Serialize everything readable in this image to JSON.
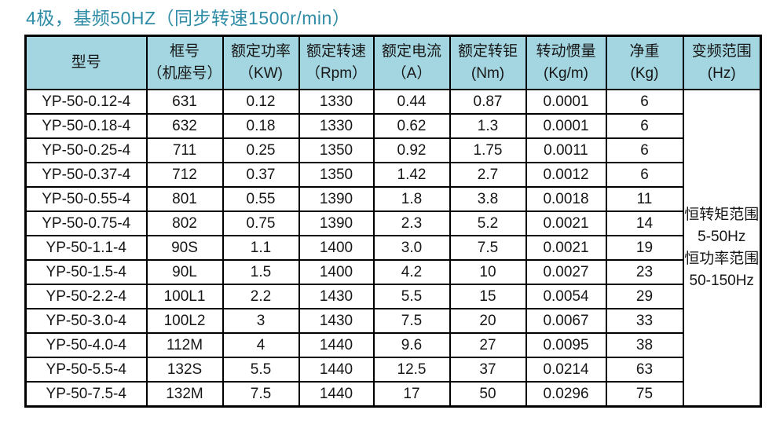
{
  "page": {
    "title": "4极，基频50HZ（同步转速1500r/min）"
  },
  "colors": {
    "title_text": "#2e8ca6",
    "header_bg": "#a3d6e0",
    "border": "#000000",
    "body_bg": "#ffffff",
    "cell_text": "#161616"
  },
  "table": {
    "headers": [
      {
        "line1": "型号",
        "line2": ""
      },
      {
        "line1": "框号",
        "line2": "（机座号）"
      },
      {
        "line1": "额定功率",
        "line2": "（KW)"
      },
      {
        "line1": "额定转速",
        "line2": "（Rpm）"
      },
      {
        "line1": "额定电流",
        "line2": "（A）"
      },
      {
        "line1": "额定转钜",
        "line2": "(Nm)"
      },
      {
        "line1": "转动惯量",
        "line2": "(Kg/m)"
      },
      {
        "line1": "净重",
        "line2": "(Kg)"
      },
      {
        "line1": "变频范围",
        "line2": "(Hz)"
      }
    ],
    "rows": [
      {
        "model": "YP-50-0.12-4",
        "frame": "631",
        "power": "0.12",
        "speed": "1330",
        "current": "0.44",
        "torque": "0.87",
        "inertia": "0.0001",
        "weight": "6"
      },
      {
        "model": "YP-50-0.18-4",
        "frame": "632",
        "power": "0.18",
        "speed": "1330",
        "current": "0.62",
        "torque": "1.3",
        "inertia": "0.0001",
        "weight": "6"
      },
      {
        "model": "YP-50-0.25-4",
        "frame": "711",
        "power": "0.25",
        "speed": "1350",
        "current": "0.92",
        "torque": "1.75",
        "inertia": "0.0011",
        "weight": "6"
      },
      {
        "model": "YP-50-0.37-4",
        "frame": "712",
        "power": "0.37",
        "speed": "1350",
        "current": "1.42",
        "torque": "2.7",
        "inertia": "0.0012",
        "weight": "6"
      },
      {
        "model": "YP-50-0.55-4",
        "frame": "801",
        "power": "0.55",
        "speed": "1390",
        "current": "1.8",
        "torque": "3.8",
        "inertia": "0.0018",
        "weight": "11"
      },
      {
        "model": "YP-50-0.75-4",
        "frame": "802",
        "power": "0.75",
        "speed": "1390",
        "current": "2.3",
        "torque": "5.2",
        "inertia": "0.0021",
        "weight": "14"
      },
      {
        "model": "YP-50-1.1-4",
        "frame": "90S",
        "power": "1.1",
        "speed": "1400",
        "current": "3.0",
        "torque": "7.5",
        "inertia": "0.0021",
        "weight": "19"
      },
      {
        "model": "YP-50-1.5-4",
        "frame": "90L",
        "power": "1.5",
        "speed": "1400",
        "current": "4.2",
        "torque": "10",
        "inertia": "0.0027",
        "weight": "23"
      },
      {
        "model": "YP-50-2.2-4",
        "frame": "100L1",
        "power": "2.2",
        "speed": "1430",
        "current": "5.5",
        "torque": "15",
        "inertia": "0.0054",
        "weight": "29"
      },
      {
        "model": "YP-50-3.0-4",
        "frame": "100L2",
        "power": "3",
        "speed": "1430",
        "current": "7.5",
        "torque": "20",
        "inertia": "0.0067",
        "weight": "33"
      },
      {
        "model": "YP-50-4.0-4",
        "frame": "112M",
        "power": "4",
        "speed": "1440",
        "current": "9.6",
        "torque": "27",
        "inertia": "0.0095",
        "weight": "38"
      },
      {
        "model": "YP-50-5.5-4",
        "frame": "132S",
        "power": "5.5",
        "speed": "1440",
        "current": "12.5",
        "torque": "37",
        "inertia": "0.0214",
        "weight": "63"
      },
      {
        "model": "YP-50-7.5-4",
        "frame": "132M",
        "power": "7.5",
        "speed": "1440",
        "current": "17",
        "torque": "50",
        "inertia": "0.0296",
        "weight": "75"
      }
    ],
    "freq_range": {
      "line1": "恒转矩范围",
      "line2": "5-50Hz",
      "line3": "恒功率范围",
      "line4": "50-150Hz"
    }
  }
}
